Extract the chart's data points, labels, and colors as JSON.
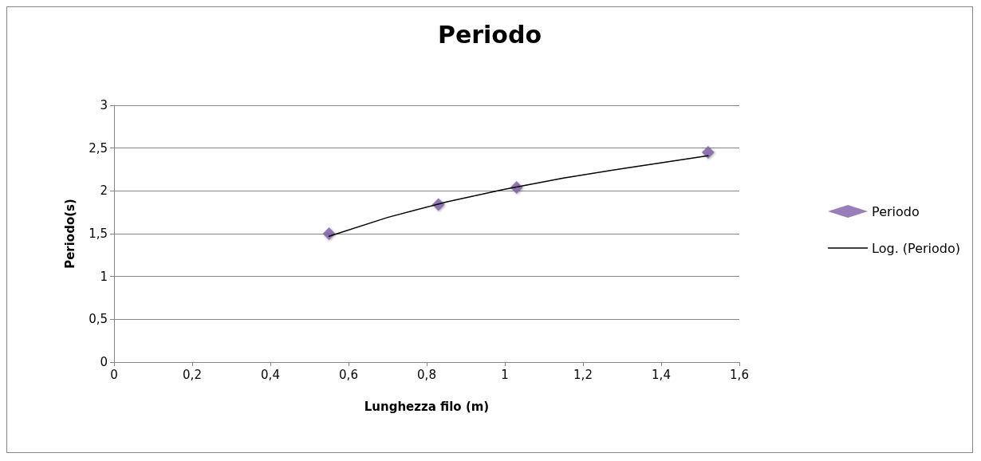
{
  "chart_data": {
    "type": "scatter",
    "title": "Periodo",
    "xlabel": "Lunghezza filo (m)",
    "ylabel": "Periodo(s)",
    "xlim": [
      0,
      1.6
    ],
    "xticks": [
      0,
      {
        "value": 0.2,
        "label": "0,2"
      },
      {
        "value": 0.4,
        "label": "0,4"
      },
      {
        "value": 0.6,
        "label": "0,6"
      },
      {
        "value": 0.8,
        "label": "0,8"
      },
      1,
      {
        "value": 1.2,
        "label": "1,2"
      },
      {
        "value": 1.4,
        "label": "1,4"
      },
      {
        "value": 1.6,
        "label": "1,6"
      }
    ],
    "ylim": [
      0,
      3
    ],
    "yticks": [
      0,
      {
        "value": 0.5,
        "label": "0,5"
      },
      1,
      {
        "value": 1.5,
        "label": "1,5"
      },
      2,
      {
        "value": 2.5,
        "label": "2,5"
      },
      3
    ],
    "grid": "y",
    "legend": "right",
    "series": [
      {
        "name": "Periodo",
        "marker": "diamond",
        "color": "#7f5fa8",
        "x": [
          0.55,
          0.83,
          1.03,
          1.52
        ],
        "values": [
          1.5,
          1.84,
          2.04,
          2.45
        ]
      },
      {
        "name": "Log. (Periodo)",
        "type": "line",
        "marker": "none",
        "color": "#000000",
        "x": [
          0.55,
          0.7,
          0.85,
          1.0,
          1.15,
          1.3,
          1.52
        ],
        "values": [
          1.47,
          1.69,
          1.87,
          2.02,
          2.15,
          2.26,
          2.41
        ]
      }
    ]
  }
}
